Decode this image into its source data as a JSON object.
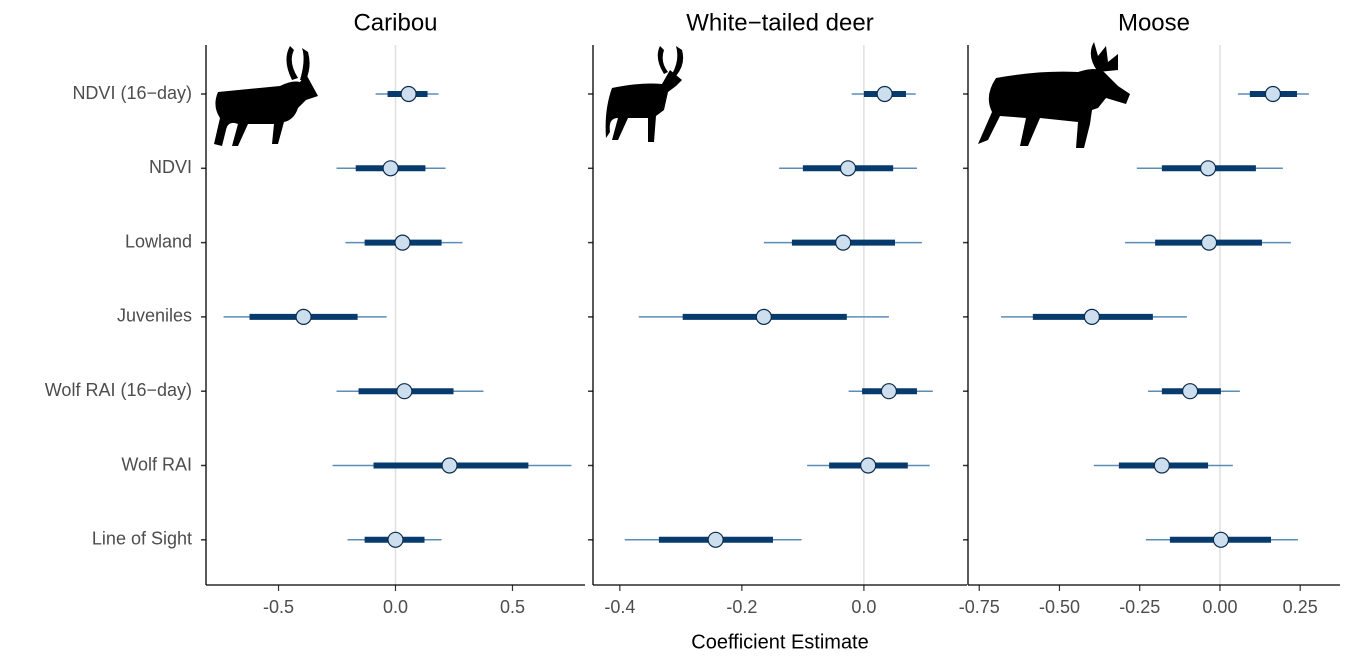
{
  "chart_data": [
    {
      "type": "dot-interval",
      "title": "Caribou",
      "categories": [
        "NDVI (16−day)",
        "NDVI",
        "Lowland",
        "Juveniles",
        "Wolf RAI (16−day)",
        "Wolf RAI",
        "Line of Sight"
      ],
      "estimate": [
        0.056,
        -0.021,
        0.03,
        -0.393,
        0.038,
        0.231,
        0
      ],
      "inner_low": [
        -0.034,
        -0.17,
        -0.132,
        -0.624,
        -0.158,
        -0.094,
        -0.132
      ],
      "inner_high": [
        0.137,
        0.128,
        0.197,
        -0.162,
        0.248,
        0.568,
        0.124
      ],
      "outer_low": [
        -0.085,
        -0.252,
        -0.214,
        -0.735,
        -0.252,
        -0.269,
        -0.205
      ],
      "outer_high": [
        0.184,
        0.214,
        0.286,
        -0.038,
        0.376,
        0.752,
        0.197
      ],
      "xlim": [
        -0.81,
        0.81
      ],
      "xticks": [
        -0.5,
        {
          "value": 0,
          "label": "0.0"
        },
        0.5
      ],
      "color": "#083b6d",
      "interval_color": "#5b8db6",
      "point_color": "#cddfee"
    },
    {
      "type": "dot-interval",
      "title": "White−tailed deer",
      "x_label": "Coefficient Estimate",
      "estimate": [
        0.034,
        -0.026,
        -0.034,
        -0.164,
        0.041,
        0.007,
        -0.243
      ],
      "inner_low": [
        0.0,
        -0.1,
        -0.118,
        -0.297,
        -0.003,
        -0.057,
        -0.336
      ],
      "inner_high": [
        0.069,
        0.048,
        0.051,
        -0.028,
        0.087,
        0.072,
        -0.149
      ],
      "outer_low": [
        -0.02,
        -0.139,
        -0.164,
        -0.369,
        -0.025,
        -0.093,
        -0.392
      ],
      "outer_high": [
        0.085,
        0.087,
        0.095,
        0.041,
        0.113,
        0.108,
        -0.102
      ],
      "xlim": [
        -0.444,
        0.169
      ],
      "xticks": [
        -0.4,
        -0.2,
        {
          "value": 0,
          "label": "0.0"
        }
      ],
      "color": "#083b6d",
      "interval_color": "#5b8db6",
      "point_color": "#cddfee"
    },
    {
      "type": "dot-interval",
      "title": "Moose",
      "estimate": [
        0.165,
        -0.037,
        -0.034,
        -0.399,
        -0.093,
        -0.181,
        0.003
      ],
      "inner_low": [
        0.093,
        -0.181,
        -0.202,
        -0.583,
        -0.181,
        -0.315,
        -0.156
      ],
      "inner_high": [
        0.24,
        0.112,
        0.131,
        -0.209,
        0.003,
        -0.037,
        0.159
      ],
      "outer_low": [
        0.056,
        -0.259,
        -0.296,
        -0.682,
        -0.224,
        -0.393,
        -0.231
      ],
      "outer_high": [
        0.277,
        0.196,
        0.221,
        -0.103,
        0.062,
        0.04,
        0.243
      ],
      "xlim": [
        -0.785,
        0.374
      ],
      "xticks": [
        -0.75,
        {
          "value": -0.5,
          "label": "-0.50"
        },
        -0.25,
        {
          "value": 0,
          "label": "0.00"
        },
        0.25
      ],
      "color": "#083b6d",
      "interval_color": "#5b8db6",
      "point_color": "#cddfee"
    }
  ]
}
